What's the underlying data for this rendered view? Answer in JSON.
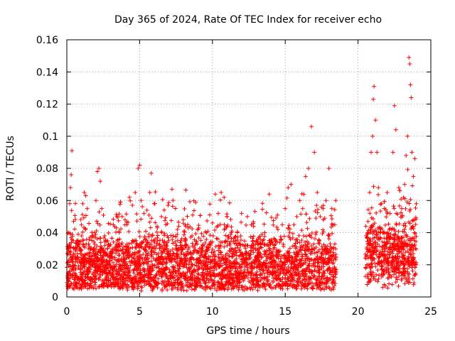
{
  "chart_data": {
    "type": "scatter",
    "title": "Day 365 of 2024, Rate Of TEC Index for receiver echo",
    "xlabel": "GPS time / hours",
    "ylabel": "ROTI / TECUs",
    "xlim": [
      0,
      25
    ],
    "ylim": [
      0,
      0.16
    ],
    "x_ticks": [
      0,
      5,
      10,
      15,
      20,
      25
    ],
    "x_tick_labels": [
      "0",
      "5",
      "10",
      "15",
      "20",
      "25"
    ],
    "y_ticks": [
      0,
      0.02,
      0.04,
      0.06,
      0.08,
      0.1,
      0.12,
      0.14,
      0.16
    ],
    "y_tick_labels": [
      "0",
      "0.02",
      "0.04",
      "0.06",
      "0.08",
      "0.1",
      "0.12",
      "0.14",
      "0.16"
    ],
    "grid": true,
    "marker": "+",
    "series_color": "#ff0000",
    "data_gap_hours": [
      18.5,
      20.5
    ],
    "series": [
      {
        "points": [
          [
            0.05,
            0.012
          ],
          [
            0.1,
            0.03
          ],
          [
            0.15,
            0.04
          ],
          [
            0.2,
            0.058
          ],
          [
            0.25,
            0.068
          ],
          [
            0.3,
            0.076
          ],
          [
            0.35,
            0.091
          ],
          [
            0.45,
            0.035
          ],
          [
            0.6,
            0.022
          ],
          [
            0.8,
            0.018
          ],
          [
            1.0,
            0.045
          ],
          [
            1.1,
            0.058
          ],
          [
            1.2,
            0.065
          ],
          [
            1.3,
            0.063
          ],
          [
            1.4,
            0.055
          ],
          [
            1.5,
            0.033
          ],
          [
            1.7,
            0.025
          ],
          [
            1.9,
            0.04
          ],
          [
            2.0,
            0.06
          ],
          [
            2.1,
            0.078
          ],
          [
            2.2,
            0.08
          ],
          [
            2.3,
            0.072
          ],
          [
            2.4,
            0.055
          ],
          [
            2.6,
            0.038
          ],
          [
            2.8,
            0.03
          ],
          [
            3.0,
            0.028
          ],
          [
            3.2,
            0.045
          ],
          [
            3.4,
            0.043
          ],
          [
            3.6,
            0.04
          ],
          [
            3.8,
            0.05
          ],
          [
            4.0,
            0.048
          ],
          [
            4.3,
            0.062
          ],
          [
            4.5,
            0.057
          ],
          [
            4.7,
            0.065
          ],
          [
            4.9,
            0.08
          ],
          [
            5.0,
            0.082
          ],
          [
            5.1,
            0.06
          ],
          [
            5.3,
            0.052
          ],
          [
            5.5,
            0.054
          ],
          [
            5.7,
            0.065
          ],
          [
            5.8,
            0.077
          ],
          [
            6.0,
            0.058
          ],
          [
            6.2,
            0.044
          ],
          [
            6.5,
            0.05
          ],
          [
            6.8,
            0.045
          ],
          [
            7.0,
            0.035
          ],
          [
            7.3,
            0.038
          ],
          [
            7.6,
            0.042
          ],
          [
            8.0,
            0.048
          ],
          [
            8.3,
            0.045
          ],
          [
            8.6,
            0.038
          ],
          [
            9.0,
            0.042
          ],
          [
            9.3,
            0.03
          ],
          [
            9.6,
            0.022
          ],
          [
            10.0,
            0.046
          ],
          [
            10.2,
            0.064
          ],
          [
            10.4,
            0.052
          ],
          [
            10.6,
            0.065
          ],
          [
            10.8,
            0.062
          ],
          [
            11.0,
            0.05
          ],
          [
            11.3,
            0.04
          ],
          [
            11.6,
            0.035
          ],
          [
            12.0,
            0.052
          ],
          [
            12.4,
            0.05
          ],
          [
            12.8,
            0.035
          ],
          [
            13.2,
            0.028
          ],
          [
            13.6,
            0.04
          ],
          [
            13.9,
            0.064
          ],
          [
            14.2,
            0.03
          ],
          [
            14.5,
            0.042
          ],
          [
            14.8,
            0.045
          ],
          [
            15.0,
            0.055
          ],
          [
            15.2,
            0.068
          ],
          [
            15.4,
            0.07
          ],
          [
            15.6,
            0.045
          ],
          [
            15.8,
            0.05
          ],
          [
            16.0,
            0.06
          ],
          [
            16.2,
            0.055
          ],
          [
            16.4,
            0.075
          ],
          [
            16.6,
            0.08
          ],
          [
            16.8,
            0.106
          ],
          [
            17.0,
            0.09
          ],
          [
            17.2,
            0.065
          ],
          [
            17.4,
            0.05
          ],
          [
            17.6,
            0.055
          ],
          [
            17.8,
            0.06
          ],
          [
            18.0,
            0.08
          ],
          [
            18.2,
            0.055
          ],
          [
            18.4,
            0.045
          ],
          [
            20.6,
            0.03
          ],
          [
            20.7,
            0.04
          ],
          [
            20.8,
            0.065
          ],
          [
            20.9,
            0.09
          ],
          [
            21.0,
            0.1
          ],
          [
            21.05,
            0.123
          ],
          [
            21.1,
            0.131
          ],
          [
            21.2,
            0.11
          ],
          [
            21.3,
            0.09
          ],
          [
            21.4,
            0.068
          ],
          [
            21.6,
            0.058
          ],
          [
            21.8,
            0.055
          ],
          [
            22.0,
            0.065
          ],
          [
            22.2,
            0.052
          ],
          [
            22.4,
            0.09
          ],
          [
            22.5,
            0.119
          ],
          [
            22.6,
            0.104
          ],
          [
            22.8,
            0.068
          ],
          [
            23.0,
            0.055
          ],
          [
            23.2,
            0.07
          ],
          [
            23.3,
            0.088
          ],
          [
            23.4,
            0.1
          ],
          [
            23.5,
            0.149
          ],
          [
            23.55,
            0.145
          ],
          [
            23.6,
            0.132
          ],
          [
            23.65,
            0.124
          ],
          [
            23.7,
            0.09
          ],
          [
            23.8,
            0.075
          ],
          [
            23.9,
            0.086
          ],
          [
            24.0,
            0.058
          ]
        ]
      }
    ]
  }
}
